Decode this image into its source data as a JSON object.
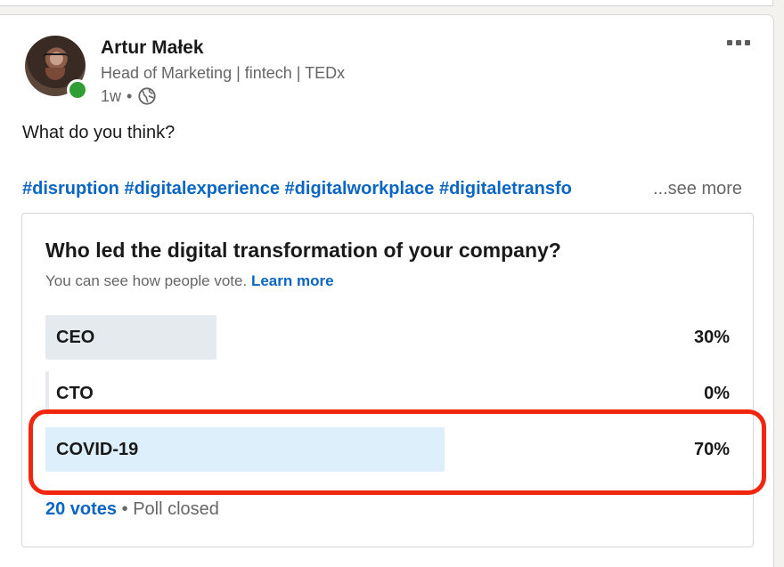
{
  "author": {
    "name": "Artur Małek",
    "headline": "Head of Marketing | fintech | TEDx",
    "time": "1w",
    "separator": "•",
    "visibility_icon": "globe-icon",
    "status_color": "#2f9e34"
  },
  "post": {
    "text": "What do you think?",
    "hashtags": [
      "#disruption",
      "#digitalexperience",
      "#digitalworkplace",
      "#digitaletransfo"
    ],
    "see_more": "...see more"
  },
  "poll": {
    "question": "Who led the digital transformation of your company?",
    "subtitle": "You can see how people vote.",
    "learn_more": "Learn more",
    "options": [
      {
        "label": "CEO",
        "percent_text": "30%",
        "fraction": 0.3,
        "color": "#e5eaef"
      },
      {
        "label": "CTO",
        "percent_text": "0%",
        "fraction": 0.0,
        "color": "#e5eaef"
      },
      {
        "label": "COVID-19",
        "percent_text": "70%",
        "fraction": 0.7,
        "color": "#dceffb"
      }
    ],
    "votes": "20 votes",
    "separator": "•",
    "status": "Poll closed"
  },
  "colors": {
    "link": "#0a66c2",
    "highlight": "#f0260f"
  }
}
